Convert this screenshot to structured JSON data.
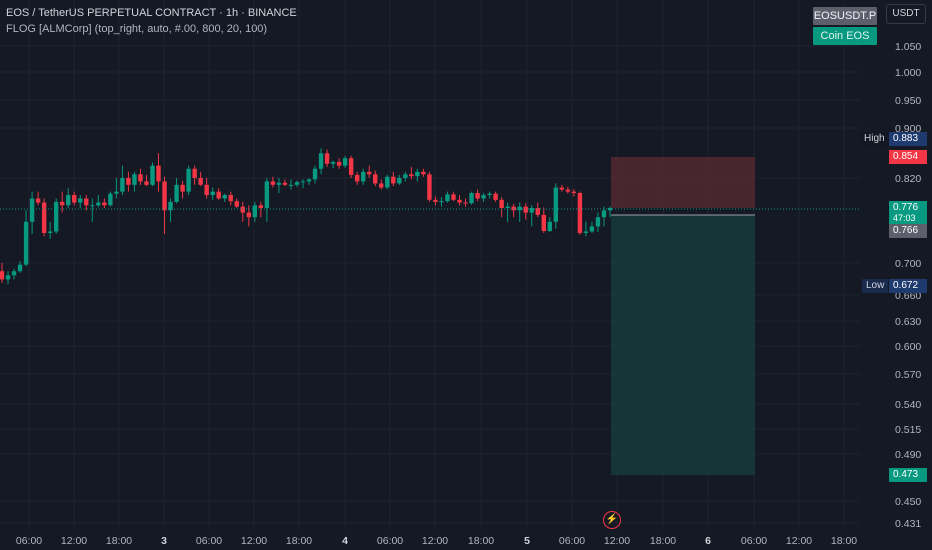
{
  "header": {
    "title": "EOS / TetherUS PERPETUAL CONTRACT · 1h · BINANCE",
    "indicator": "FLOG [ALMCorp] (top_right, auto, #.00, 800, 20, 100)"
  },
  "controls": {
    "currency_label": "USDT",
    "symbol_tag": "EOSUSDT.P",
    "coin_tag": "Coin EOS"
  },
  "price_axis": {
    "ticks": [
      "1.050",
      "1.000",
      "0.950",
      "0.900",
      "0.820",
      "0.700",
      "0.660",
      "0.630",
      "0.600",
      "0.570",
      "0.540",
      "0.515",
      "0.490",
      "0.450",
      "0.431"
    ]
  },
  "time_axis": {
    "ticks": [
      "06:00",
      "12:00",
      "18:00",
      "3",
      "06:00",
      "12:00",
      "18:00",
      "4",
      "06:00",
      "12:00",
      "18:00",
      "5",
      "06:00",
      "12:00",
      "18:00",
      "6",
      "06:00",
      "12:00",
      "18:00"
    ]
  },
  "labels": {
    "high_text": "High",
    "high_value": "0.883",
    "stop_value": "0.854",
    "last_value": "0.776",
    "countdown": "47:03",
    "entry_value": "0.766",
    "low_text": "Low",
    "low_value": "0.672",
    "target_value": "0.473"
  },
  "colors": {
    "background": "#151924",
    "up": "#089981",
    "down": "#f23645",
    "stop_zone": "#5b2a33",
    "target_zone": "#163b3a",
    "grid": "#1f2330"
  },
  "chart_data": {
    "type": "candlestick",
    "title": "EOS / TetherUS PERPETUAL CONTRACT · 1h · BINANCE",
    "interval": "1h",
    "ylim": [
      0.431,
      1.05
    ],
    "y_scale": "nonlinear",
    "grid": true,
    "candles": [
      [
        0.69,
        0.7,
        0.676,
        0.68
      ],
      [
        0.68,
        0.69,
        0.674,
        0.685
      ],
      [
        0.685,
        0.693,
        0.68,
        0.69
      ],
      [
        0.69,
        0.704,
        0.688,
        0.698
      ],
      [
        0.698,
        0.775,
        0.696,
        0.77
      ],
      [
        0.77,
        0.8,
        0.76,
        0.79
      ],
      [
        0.79,
        0.8,
        0.78,
        0.784
      ],
      [
        0.784,
        0.79,
        0.755,
        0.762
      ],
      [
        0.762,
        0.77,
        0.75,
        0.765
      ],
      [
        0.765,
        0.79,
        0.76,
        0.785
      ],
      [
        0.785,
        0.8,
        0.774,
        0.78
      ],
      [
        0.78,
        0.805,
        0.776,
        0.795
      ],
      [
        0.795,
        0.8,
        0.78,
        0.784
      ],
      [
        0.784,
        0.795,
        0.776,
        0.79
      ],
      [
        0.79,
        0.795,
        0.775,
        0.78
      ],
      [
        0.78,
        0.79,
        0.77,
        0.78
      ],
      [
        0.78,
        0.795,
        0.777,
        0.784
      ],
      [
        0.784,
        0.79,
        0.776,
        0.78
      ],
      [
        0.78,
        0.8,
        0.778,
        0.797
      ],
      [
        0.797,
        0.82,
        0.79,
        0.8
      ],
      [
        0.8,
        0.84,
        0.795,
        0.82
      ],
      [
        0.82,
        0.83,
        0.8,
        0.81
      ],
      [
        0.81,
        0.83,
        0.8,
        0.826
      ],
      [
        0.826,
        0.835,
        0.81,
        0.815
      ],
      [
        0.815,
        0.825,
        0.808,
        0.81
      ],
      [
        0.81,
        0.845,
        0.808,
        0.84
      ],
      [
        0.84,
        0.86,
        0.8,
        0.815
      ],
      [
        0.815,
        0.822,
        0.76,
        0.775
      ],
      [
        0.775,
        0.79,
        0.77,
        0.785
      ],
      [
        0.785,
        0.82,
        0.783,
        0.81
      ],
      [
        0.81,
        0.816,
        0.79,
        0.8
      ],
      [
        0.8,
        0.84,
        0.795,
        0.835
      ],
      [
        0.835,
        0.84,
        0.81,
        0.82
      ],
      [
        0.82,
        0.83,
        0.808,
        0.81
      ],
      [
        0.81,
        0.82,
        0.79,
        0.795
      ],
      [
        0.795,
        0.806,
        0.788,
        0.8
      ],
      [
        0.8,
        0.805,
        0.788,
        0.79
      ],
      [
        0.79,
        0.797,
        0.785,
        0.795
      ],
      [
        0.795,
        0.8,
        0.78,
        0.786
      ],
      [
        0.786,
        0.79,
        0.776,
        0.778
      ],
      [
        0.778,
        0.785,
        0.77,
        0.774
      ],
      [
        0.774,
        0.78,
        0.768,
        0.772
      ],
      [
        0.772,
        0.785,
        0.77,
        0.78
      ],
      [
        0.78,
        0.785,
        0.772,
        0.776
      ],
      [
        0.776,
        0.82,
        0.77,
        0.815
      ],
      [
        0.815,
        0.822,
        0.806,
        0.81
      ],
      [
        0.81,
        0.82,
        0.798,
        0.813
      ],
      [
        0.813,
        0.818,
        0.808,
        0.81
      ],
      [
        0.81,
        0.818,
        0.803,
        0.81
      ],
      [
        0.81,
        0.816,
        0.807,
        0.814
      ],
      [
        0.814,
        0.818,
        0.805,
        0.815
      ],
      [
        0.815,
        0.82,
        0.81,
        0.818
      ],
      [
        0.818,
        0.84,
        0.812,
        0.835
      ],
      [
        0.835,
        0.868,
        0.826,
        0.86
      ],
      [
        0.86,
        0.866,
        0.838,
        0.843
      ],
      [
        0.843,
        0.848,
        0.836,
        0.846
      ],
      [
        0.846,
        0.852,
        0.835,
        0.84
      ],
      [
        0.84,
        0.856,
        0.836,
        0.852
      ],
      [
        0.852,
        0.856,
        0.82,
        0.825
      ],
      [
        0.825,
        0.83,
        0.81,
        0.815
      ],
      [
        0.815,
        0.835,
        0.81,
        0.83
      ],
      [
        0.83,
        0.84,
        0.82,
        0.826
      ],
      [
        0.826,
        0.832,
        0.808,
        0.812
      ],
      [
        0.812,
        0.818,
        0.803,
        0.806
      ],
      [
        0.806,
        0.825,
        0.804,
        0.822
      ],
      [
        0.822,
        0.83,
        0.808,
        0.812
      ],
      [
        0.812,
        0.825,
        0.81,
        0.82
      ],
      [
        0.82,
        0.83,
        0.815,
        0.826
      ],
      [
        0.826,
        0.838,
        0.818,
        0.823
      ],
      [
        0.823,
        0.835,
        0.815,
        0.83
      ],
      [
        0.83,
        0.835,
        0.822,
        0.826
      ],
      [
        0.826,
        0.83,
        0.785,
        0.788
      ],
      [
        0.788,
        0.793,
        0.78,
        0.785
      ],
      [
        0.785,
        0.792,
        0.778,
        0.786
      ],
      [
        0.786,
        0.8,
        0.784,
        0.796
      ],
      [
        0.796,
        0.8,
        0.786,
        0.788
      ],
      [
        0.788,
        0.795,
        0.78,
        0.784
      ],
      [
        0.784,
        0.79,
        0.778,
        0.783
      ],
      [
        0.783,
        0.8,
        0.781,
        0.798
      ],
      [
        0.798,
        0.803,
        0.786,
        0.79
      ],
      [
        0.79,
        0.798,
        0.785,
        0.795
      ],
      [
        0.795,
        0.8,
        0.79,
        0.797
      ],
      [
        0.797,
        0.8,
        0.785,
        0.788
      ],
      [
        0.788,
        0.792,
        0.772,
        0.776
      ],
      [
        0.776,
        0.784,
        0.77,
        0.778
      ],
      [
        0.778,
        0.782,
        0.772,
        0.775
      ],
      [
        0.775,
        0.784,
        0.77,
        0.778
      ],
      [
        0.778,
        0.783,
        0.771,
        0.774
      ],
      [
        0.774,
        0.78,
        0.768,
        0.776
      ],
      [
        0.776,
        0.784,
        0.772,
        0.773
      ],
      [
        0.773,
        0.777,
        0.762,
        0.766
      ],
      [
        0.766,
        0.772,
        0.764,
        0.77
      ],
      [
        0.77,
        0.812,
        0.767,
        0.806
      ],
      [
        0.806,
        0.81,
        0.8,
        0.803
      ],
      [
        0.803,
        0.807,
        0.797,
        0.8
      ],
      [
        0.8,
        0.804,
        0.793,
        0.798
      ],
      [
        0.798,
        0.8,
        0.758,
        0.762
      ],
      [
        0.762,
        0.77,
        0.755,
        0.765
      ],
      [
        0.765,
        0.77,
        0.762,
        0.768
      ],
      [
        0.768,
        0.774,
        0.764,
        0.772
      ],
      [
        0.772,
        0.778,
        0.768,
        0.775
      ],
      [
        0.775,
        0.778,
        0.772,
        0.776
      ]
    ],
    "trade_zones": {
      "stop": [
        0.776,
        0.854
      ],
      "target": [
        0.473,
        0.776
      ]
    },
    "markers": {
      "high": 0.883,
      "low": 0.672,
      "last": 0.776,
      "entry": 0.766
    }
  }
}
